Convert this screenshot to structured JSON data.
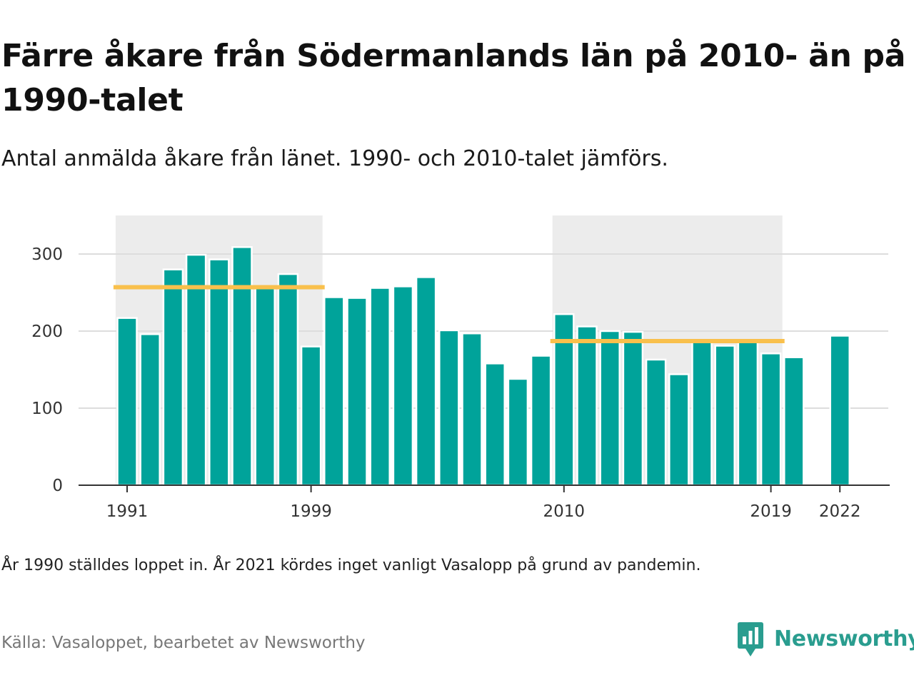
{
  "header": {
    "title": "Färre åkare från Södermanlands län på 2010- än på 1990-talet",
    "subtitle": "Antal anmälda åkare från länet. 1990- och 2010-talet jämförs."
  },
  "footer": {
    "note": "År 1990 ställdes loppet in. År 2021 kördes inget vanligt Vasalopp på grund av pandemin.",
    "source": "Källa: Vasaloppet, bearbetet av Newsworthy",
    "brand": "Newsworthy"
  },
  "colors": {
    "bar": "#00a39a",
    "average_line": "#f9c04c",
    "decade_band": "#ececec",
    "gridline": "#dddddd",
    "axis": "#333333",
    "brand": "#2a9d8f"
  },
  "chart_data": {
    "type": "bar",
    "title": "Färre åkare från Södermanlands län på 2010- än på 1990-talet",
    "subtitle": "Antal anmälda åkare från länet. 1990- och 2010-talet jämförs.",
    "x": [
      1991,
      1992,
      1993,
      1994,
      1995,
      1996,
      1997,
      1998,
      1999,
      2000,
      2001,
      2002,
      2003,
      2004,
      2005,
      2006,
      2007,
      2008,
      2009,
      2010,
      2011,
      2012,
      2013,
      2014,
      2015,
      2016,
      2017,
      2018,
      2019,
      2020,
      2022
    ],
    "values": [
      217,
      196,
      280,
      299,
      293,
      309,
      257,
      274,
      180,
      244,
      243,
      256,
      258,
      270,
      201,
      197,
      158,
      138,
      168,
      222,
      206,
      200,
      199,
      163,
      144,
      188,
      181,
      188,
      171,
      166,
      194
    ],
    "x_tick_labels": [
      "1991",
      "1999",
      "2010",
      "2019",
      "2022"
    ],
    "xlim": [
      1990,
      2024
    ],
    "y_ticks": [
      0,
      100,
      200,
      300
    ],
    "ylim": [
      0,
      350
    ],
    "grid": true,
    "highlight_bands": [
      {
        "label": "1990-talet",
        "from": 1991,
        "to": 1999
      },
      {
        "label": "2010-talet",
        "from": 2010,
        "to": 2019
      }
    ],
    "averages": [
      {
        "period": "1990-talet",
        "value": 257
      },
      {
        "period": "2010-talet",
        "value": 187
      }
    ]
  }
}
